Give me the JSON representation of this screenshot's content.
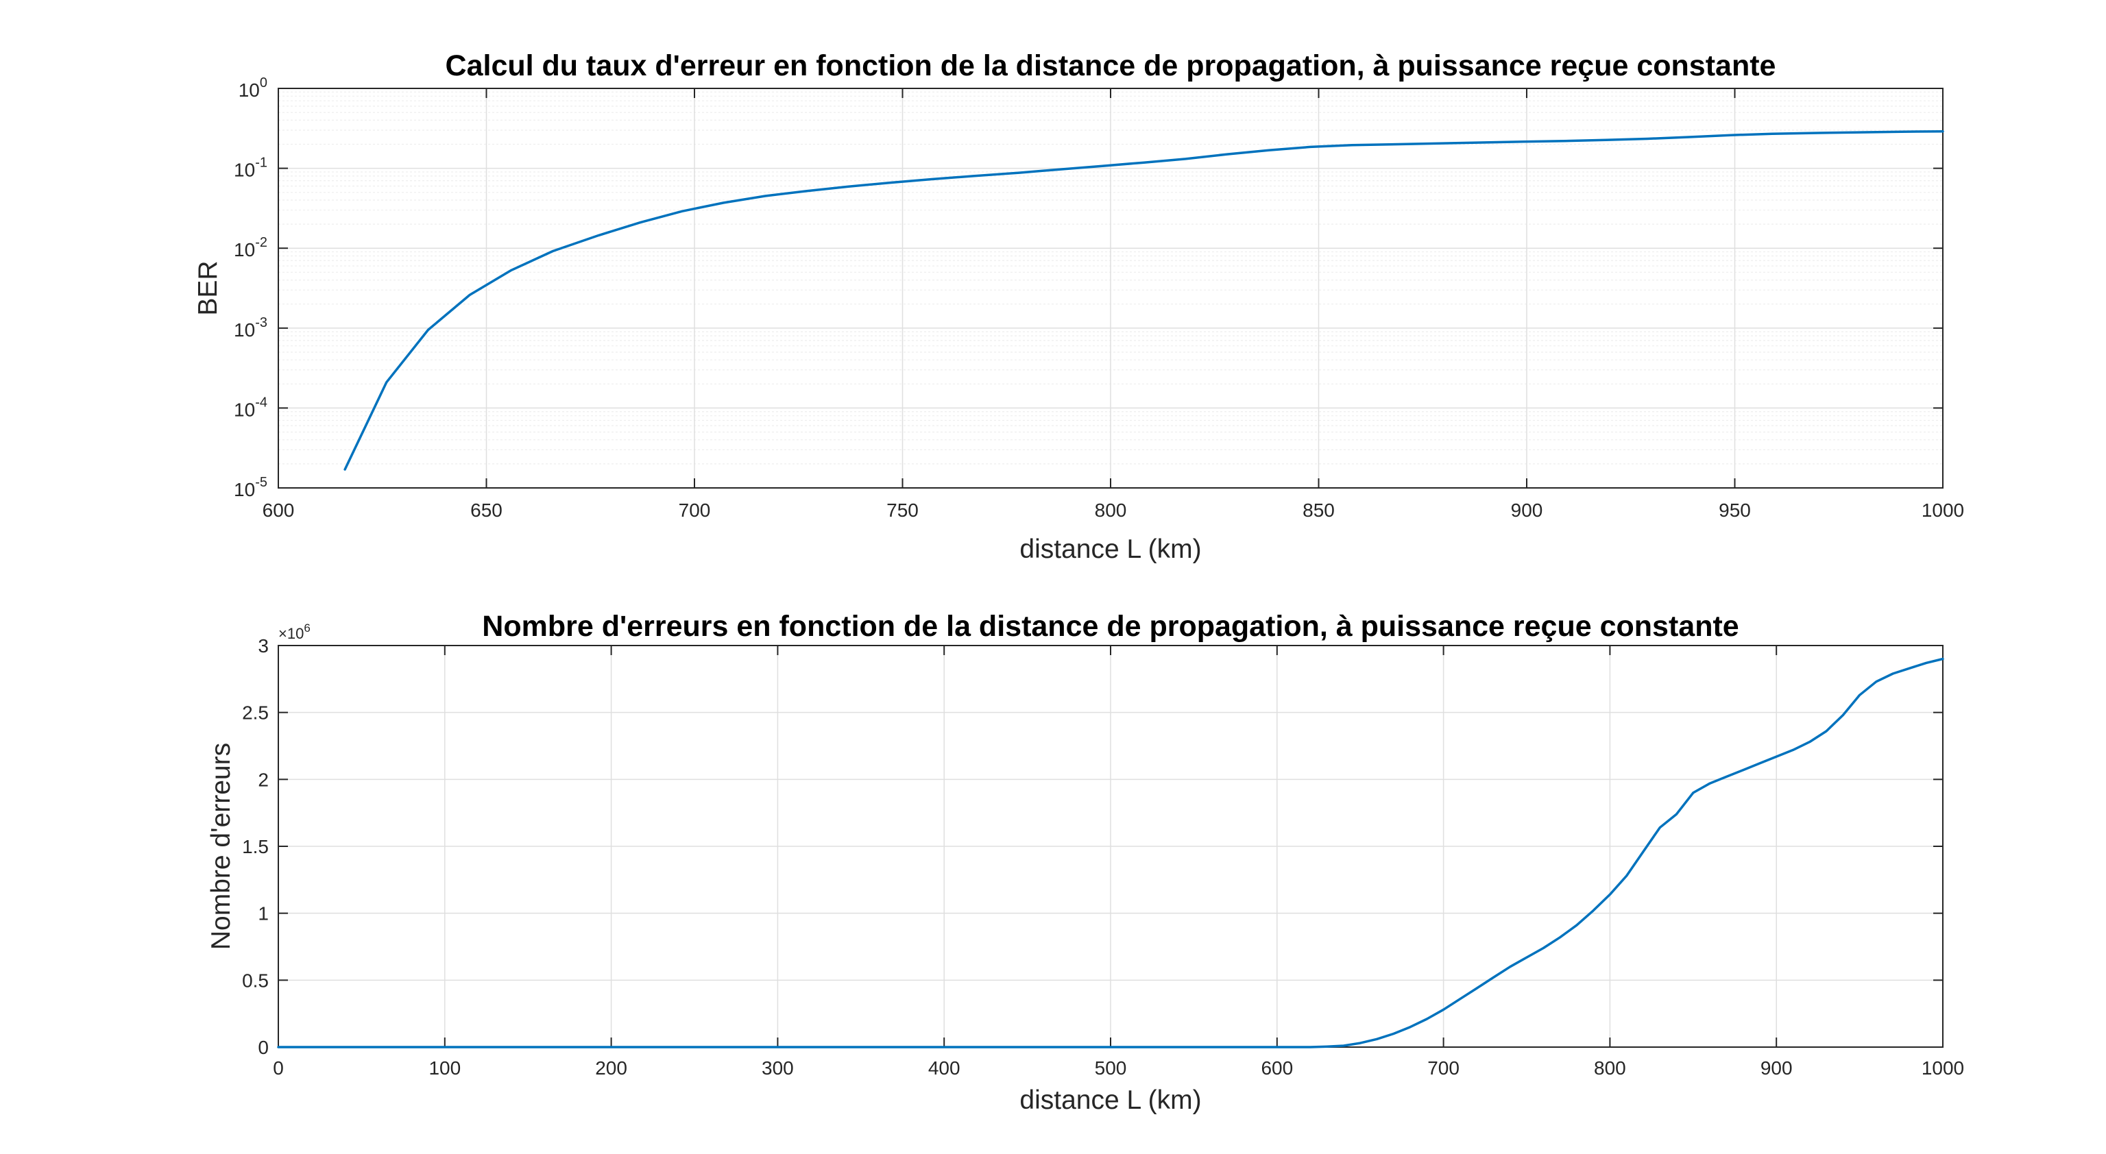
{
  "figure": {
    "line_color": "#0072BD",
    "background": "#ffffff"
  },
  "chart_data": [
    {
      "type": "line",
      "title": "Calcul du taux d'erreur en fonction de la distance de propagation, à puissance reçue constante",
      "xlabel": "distance L (km)",
      "ylabel": "BER",
      "xlim": [
        600,
        1000
      ],
      "ylim": [
        1e-05,
        1
      ],
      "yscale": "log",
      "grid": true,
      "minor_grid": true,
      "xticks": [
        "600",
        "650",
        "700",
        "750",
        "800",
        "850",
        "900",
        "950",
        "1000"
      ],
      "yticks": [
        {
          "base": "10",
          "exp": "-5"
        },
        {
          "base": "10",
          "exp": "-4"
        },
        {
          "base": "10",
          "exp": "-3"
        },
        {
          "base": "10",
          "exp": "-2"
        },
        {
          "base": "10",
          "exp": "-1"
        },
        {
          "base": "10",
          "exp": "0"
        }
      ],
      "x": [
        616,
        626,
        636,
        646,
        656,
        666,
        677,
        687,
        697,
        707,
        717,
        727,
        737,
        747,
        757,
        767,
        778,
        788,
        798,
        808,
        818,
        828,
        838,
        848,
        858,
        869,
        879,
        889,
        899,
        909,
        919,
        929,
        939,
        949,
        959,
        970,
        980,
        990,
        1000
      ],
      "y": [
        1.7e-05,
        0.00021,
        0.00095,
        0.0026,
        0.0053,
        0.0092,
        0.0145,
        0.021,
        0.029,
        0.037,
        0.045,
        0.052,
        0.059,
        0.066,
        0.073,
        0.08,
        0.088,
        0.097,
        0.107,
        0.118,
        0.131,
        0.15,
        0.168,
        0.185,
        0.195,
        0.2,
        0.205,
        0.21,
        0.215,
        0.22,
        0.226,
        0.234,
        0.246,
        0.26,
        0.27,
        0.277,
        0.282,
        0.287,
        0.29
      ]
    },
    {
      "type": "line",
      "title": "Nombre d'erreurs en fonction de la distance de propagation, à puissance reçue constante",
      "xlabel": "distance L (km)",
      "ylabel": "Nombre d'erreurs",
      "xlim": [
        0,
        1000
      ],
      "ylim": [
        0,
        3
      ],
      "y_multiplier": {
        "base": "×10",
        "exp": "6"
      },
      "grid": true,
      "xticks": [
        "0",
        "100",
        "200",
        "300",
        "400",
        "500",
        "600",
        "700",
        "800",
        "900",
        "1000"
      ],
      "yticks": [
        "0",
        "0.5",
        "1",
        "1.5",
        "2",
        "2.5",
        "3"
      ],
      "x": [
        0,
        600,
        620,
        630,
        640,
        650,
        660,
        670,
        680,
        690,
        700,
        710,
        720,
        730,
        740,
        750,
        760,
        770,
        780,
        790,
        800,
        810,
        820,
        830,
        840,
        850,
        860,
        870,
        880,
        890,
        900,
        910,
        920,
        930,
        940,
        950,
        960,
        970,
        980,
        990,
        1000
      ],
      "y": [
        0,
        0,
        0.0,
        0.004,
        0.01,
        0.03,
        0.06,
        0.1,
        0.15,
        0.21,
        0.28,
        0.36,
        0.44,
        0.52,
        0.6,
        0.67,
        0.74,
        0.82,
        0.91,
        1.02,
        1.14,
        1.28,
        1.46,
        1.64,
        1.74,
        1.9,
        1.97,
        2.02,
        2.07,
        2.12,
        2.17,
        2.22,
        2.28,
        2.36,
        2.48,
        2.63,
        2.73,
        2.79,
        2.83,
        2.87,
        2.9
      ]
    }
  ]
}
